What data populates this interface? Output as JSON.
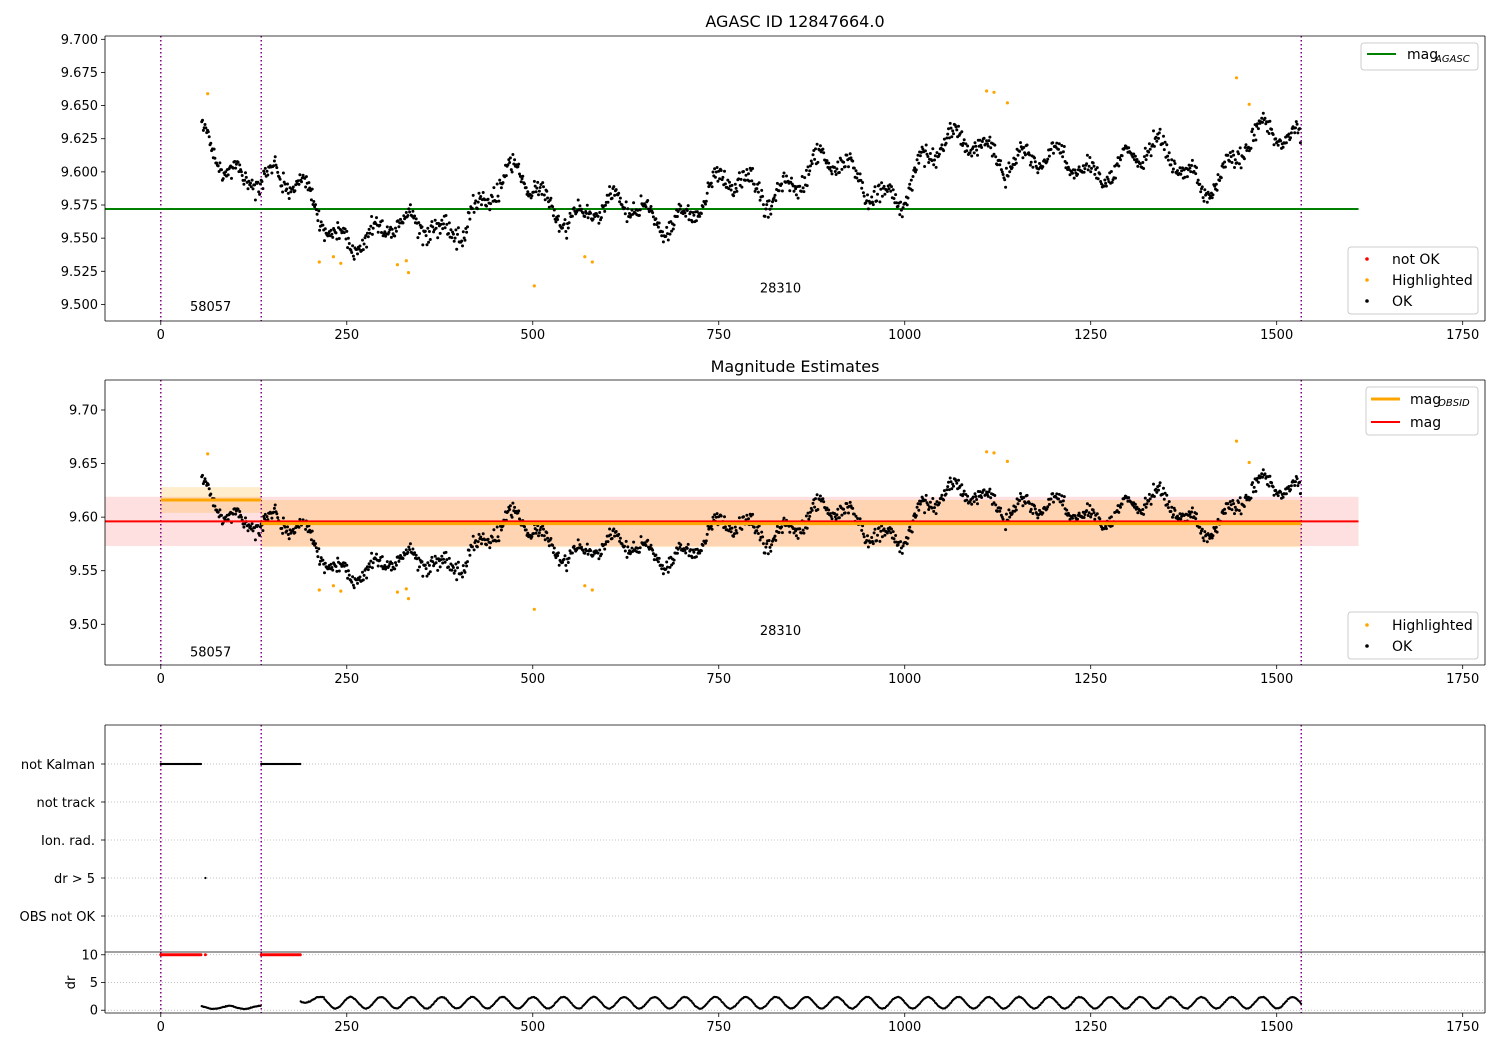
{
  "colors": {
    "ok": "#000000",
    "highlighted": "#ffa500",
    "not_ok": "#ff0000",
    "agasc": "#008000",
    "mag": "#ff0000",
    "obsid_mag": "#ffa500",
    "vline": "#800080",
    "grid": "#b0b0b0"
  },
  "chart_data": [
    {
      "id": "agasc",
      "type": "scatter",
      "title": "AGASC ID 12847664.0",
      "xlim": [
        -75,
        1780
      ],
      "ylim": [
        9.4875,
        9.7025
      ],
      "xticks": [
        0,
        250,
        500,
        750,
        1000,
        1250,
        1500,
        1750
      ],
      "yticks": [
        9.5,
        9.525,
        9.55,
        9.575,
        9.6,
        9.625,
        9.65,
        9.675,
        9.7
      ],
      "ytick_labels": [
        "9.500",
        "9.525",
        "9.550",
        "9.575",
        "9.600",
        "9.625",
        "9.650",
        "9.675",
        "9.700"
      ],
      "vlines": [
        0,
        135,
        1533
      ],
      "hline": {
        "y": 9.572,
        "x0": -75,
        "x1": 1610
      },
      "annotations": [
        {
          "text": "58057",
          "x": 67,
          "y": 9.495
        },
        {
          "text": "28310",
          "x": 833,
          "y": 9.509
        }
      ],
      "legend_lines": [
        {
          "label": "mag",
          "sub": "AGASC",
          "color": "#008000"
        }
      ],
      "legend_points": [
        {
          "label": "not OK",
          "color": "#ff0000"
        },
        {
          "label": "Highlighted",
          "color": "#ffa500"
        },
        {
          "label": "OK",
          "color": "#000000"
        }
      ],
      "highlighted": [
        [
          63,
          9.659
        ],
        [
          213,
          9.532
        ],
        [
          232,
          9.536
        ],
        [
          242,
          9.531
        ],
        [
          318,
          9.53
        ],
        [
          330,
          9.533
        ],
        [
          333,
          9.524
        ],
        [
          502,
          9.514
        ],
        [
          570,
          9.536
        ],
        [
          580,
          9.532
        ],
        [
          1110,
          9.661
        ],
        [
          1120,
          9.66
        ],
        [
          1138,
          9.652
        ],
        [
          1446,
          9.671
        ],
        [
          1463,
          9.651
        ]
      ],
      "ok_segments": [
        [
          55,
          9.62,
          9.606,
          0.01
        ],
        [
          135,
          9.6,
          9.565,
          0.012
        ],
        [
          230,
          9.56,
          9.6,
          0.01
        ],
        [
          330,
          9.55,
          9.585,
          0.012
        ],
        [
          480,
          9.59,
          9.595,
          0.01
        ],
        [
          600,
          9.565,
          9.598,
          0.01
        ],
        [
          720,
          9.575,
          9.605,
          0.011
        ],
        [
          860,
          9.6,
          9.605,
          0.011
        ],
        [
          1000,
          9.59,
          9.585,
          0.01
        ],
        [
          1100,
          9.63,
          9.635,
          0.011
        ],
        [
          1180,
          9.6,
          9.59,
          0.01
        ],
        [
          1280,
          9.61,
          9.595,
          0.011
        ],
        [
          1400,
          9.6,
          9.625,
          0.011
        ],
        [
          1533,
          9.63,
          9.605,
          0.01
        ]
      ]
    },
    {
      "id": "estimates",
      "type": "scatter",
      "title": "Magnitude Estimates",
      "xlim": [
        -75,
        1780
      ],
      "ylim": [
        9.462,
        9.728
      ],
      "xticks": [
        0,
        250,
        500,
        750,
        1000,
        1250,
        1500,
        1750
      ],
      "yticks": [
        9.5,
        9.55,
        9.6,
        9.65,
        9.7
      ],
      "ytick_labels": [
        "9.50",
        "9.55",
        "9.60",
        "9.65",
        "9.70"
      ],
      "vlines": [
        0,
        135,
        1533
      ],
      "annotations": [
        {
          "text": "58057",
          "x": 67,
          "y": 9.47
        },
        {
          "text": "28310",
          "x": 833,
          "y": 9.49
        }
      ],
      "mag": {
        "value": 9.596,
        "band": [
          9.573,
          9.619
        ],
        "x0": -75,
        "x1": 1610
      },
      "obsid_mag": [
        {
          "x0": 0,
          "x1": 135,
          "value": 9.616,
          "band": [
            9.604,
            9.628
          ]
        },
        {
          "x0": 135,
          "x1": 1533,
          "value": 9.594,
          "band": [
            9.572,
            9.616
          ]
        }
      ],
      "legend_lines": [
        {
          "label": "mag",
          "sub": "OBSID",
          "color": "#ffa500"
        },
        {
          "label": "mag",
          "sub": "",
          "color": "#ff0000"
        }
      ],
      "legend_points": [
        {
          "label": "Highlighted",
          "color": "#ffa500"
        },
        {
          "label": "OK",
          "color": "#000000"
        }
      ],
      "highlighted_ref": "agasc",
      "ok_ref": "agasc"
    },
    {
      "id": "flags",
      "type": "scatter",
      "xlim": [
        -75,
        1780
      ],
      "categories": [
        "not Kalman",
        "not track",
        "Ion. rad.",
        "dr > 5",
        "OBS not OK"
      ],
      "vlines": [
        0,
        135,
        1533
      ],
      "segments": [
        {
          "category": "not Kalman",
          "x0": 0,
          "x1": 55
        },
        {
          "category": "not Kalman",
          "x0": 135,
          "x1": 188
        }
      ],
      "single_points": [
        {
          "category": "dr > 5",
          "x": 60
        }
      ]
    },
    {
      "id": "dr",
      "type": "scatter",
      "ylabel": "dr",
      "xlim": [
        -75,
        1780
      ],
      "ylim": [
        -0.5,
        10.5
      ],
      "xticks": [
        0,
        250,
        500,
        750,
        1000,
        1250,
        1500,
        1750
      ],
      "yticks": [
        0,
        5,
        10
      ],
      "ytick_labels": [
        "0",
        "5",
        "10"
      ],
      "vlines": [
        0,
        135,
        1533
      ],
      "capped": [
        {
          "x0": 0,
          "x1": 55,
          "y": 10
        },
        {
          "x0": 135,
          "x1": 188,
          "y": 10
        },
        {
          "x0": 60,
          "x1": 60,
          "y": 10
        }
      ],
      "segments": [
        {
          "x0": 55,
          "x1": 135,
          "lo": 0.2,
          "hi": 0.8
        },
        {
          "x0": 188,
          "x1": 220,
          "lo": 1.3,
          "hi": 2.5
        },
        {
          "x0": 220,
          "x1": 1533,
          "lo": 0.2,
          "hi": 2.5
        }
      ]
    }
  ]
}
